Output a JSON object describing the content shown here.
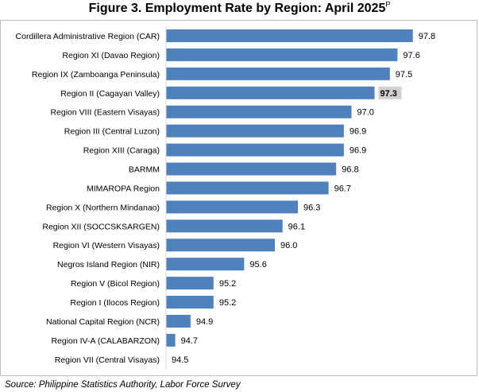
{
  "title": "Figure 3. Employment Rate by Region: April 2025",
  "title_superscript": "P",
  "source": "Source: Philippine Statistics Authority, Labor Force Survey",
  "colors": {
    "bar": "#4f81bd",
    "highlight_label_bg": "#d0d0d0",
    "text": "#000000"
  },
  "chart_data": {
    "type": "bar",
    "orientation": "horizontal",
    "title": "Figure 3. Employment Rate by Region: April 2025",
    "xlabel": "",
    "ylabel": "",
    "grid": false,
    "legend": "none",
    "highlighted_category": "Region II (Cagayan Valley)",
    "categories": [
      "Cordillera Administrative Region (CAR)",
      "Region XI (Davao Region)",
      "Region IX (Zamboanga Peninsula)",
      "Region II (Cagayan Valley)",
      "Region VIII (Eastern Visayas)",
      "Region III (Central Luzon)",
      "Region XIII (Caraga)",
      "BARMM",
      "MIMAROPA Region",
      "Region X (Northern Mindanao)",
      "Region XII (SOCCSKSARGEN)",
      "Region VI (Western Visayas)",
      "Negros Island Region (NIR)",
      "Region V (Bicol Region)",
      "Region I (Ilocos Region)",
      "National Capital Region (NCR)",
      "Region IV-A  (CALABARZON)",
      "Region VII (Central Visayas)"
    ],
    "values": [
      97.8,
      97.6,
      97.5,
      97.3,
      97.0,
      96.9,
      96.9,
      96.8,
      96.7,
      96.3,
      96.1,
      96.0,
      95.6,
      95.2,
      95.2,
      94.9,
      94.7,
      94.5
    ],
    "value_labels": [
      "97.8",
      "97.6",
      "97.5",
      "97.3",
      "97.0",
      "96.9",
      "96.9",
      "96.8",
      "96.7",
      "96.3",
      "96.1",
      "96.0",
      "95.6",
      "95.2",
      "95.2",
      "94.9",
      "94.7",
      "94.5"
    ]
  }
}
